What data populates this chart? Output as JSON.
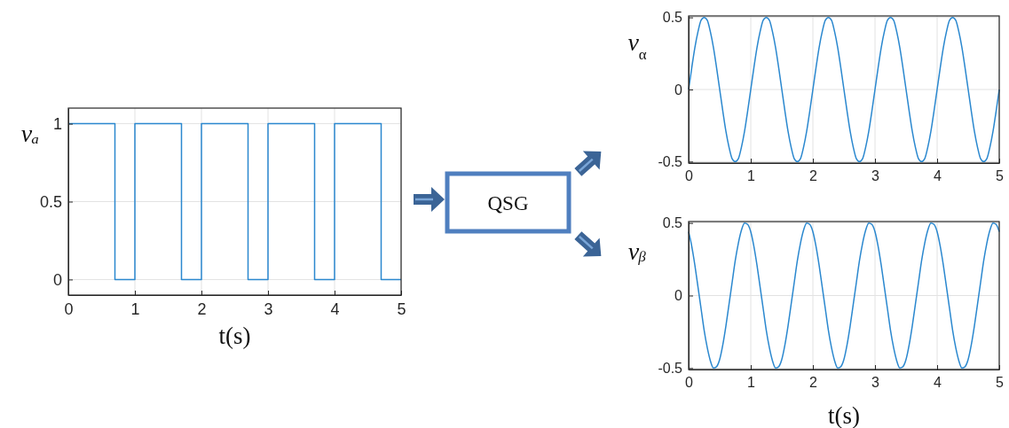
{
  "chart_data": [
    {
      "type": "step",
      "x": [
        0,
        0.7,
        1,
        1.7,
        2,
        2.7,
        3,
        3.7,
        4,
        4.7,
        5
      ],
      "values": [
        1,
        0,
        1,
        0,
        1,
        0,
        1,
        0,
        1,
        0,
        0
      ],
      "color": "#2b88cf",
      "xlim": [
        0,
        5
      ],
      "ylim": [
        -0.1,
        1.1
      ],
      "xticks": [
        0,
        1,
        2,
        3,
        4,
        5
      ],
      "yticks": [
        0,
        0.5,
        1
      ],
      "grid": true,
      "xlabel": "t(s)",
      "ylabel": "vₐ"
    },
    {
      "type": "other",
      "annotations": [
        "QSG"
      ]
    },
    {
      "type": "line",
      "x": [
        0,
        0.05,
        0.1,
        0.15,
        0.2,
        0.25,
        0.3,
        0.35,
        0.4,
        0.45,
        0.5,
        0.55,
        0.6,
        0.65,
        0.7,
        0.75,
        0.8,
        0.85,
        0.9,
        0.95,
        1,
        1.05,
        1.1,
        1.15,
        1.2,
        1.25,
        1.3,
        1.35,
        1.4,
        1.45,
        1.5,
        1.55,
        1.6,
        1.65,
        1.7,
        1.75,
        1.8,
        1.85,
        1.9,
        1.95,
        2,
        2.05,
        2.1,
        2.15,
        2.2,
        2.25,
        2.3,
        2.35,
        2.4,
        2.45,
        2.5,
        2.55,
        2.6,
        2.65,
        2.7,
        2.75,
        2.8,
        2.85,
        2.9,
        2.95,
        3,
        3.05,
        3.1,
        3.15,
        3.2,
        3.25,
        3.3,
        3.35,
        3.4,
        3.45,
        3.5,
        3.55,
        3.6,
        3.65,
        3.7,
        3.75,
        3.8,
        3.85,
        3.9,
        3.95,
        4,
        4.05,
        4.1,
        4.15,
        4.2,
        4.25,
        4.3,
        4.35,
        4.4,
        4.45,
        4.5,
        4.55,
        4.6,
        4.65,
        4.7,
        4.75,
        4.8,
        4.85,
        4.9,
        4.95,
        5
      ],
      "values": [
        0,
        0.15,
        0.29,
        0.4,
        0.48,
        0.5,
        0.48,
        0.4,
        0.29,
        0.15,
        0,
        -0.15,
        -0.29,
        -0.4,
        -0.48,
        -0.5,
        -0.48,
        -0.4,
        -0.29,
        -0.15,
        0,
        0.15,
        0.29,
        0.4,
        0.48,
        0.5,
        0.48,
        0.4,
        0.29,
        0.15,
        0,
        -0.15,
        -0.29,
        -0.4,
        -0.48,
        -0.5,
        -0.48,
        -0.4,
        -0.29,
        -0.15,
        0,
        0.15,
        0.29,
        0.4,
        0.48,
        0.5,
        0.48,
        0.4,
        0.29,
        0.15,
        0,
        -0.15,
        -0.29,
        -0.4,
        -0.48,
        -0.5,
        -0.48,
        -0.4,
        -0.29,
        -0.15,
        0,
        0.15,
        0.29,
        0.4,
        0.48,
        0.5,
        0.48,
        0.4,
        0.29,
        0.15,
        0,
        -0.15,
        -0.29,
        -0.4,
        -0.48,
        -0.5,
        -0.48,
        -0.4,
        -0.29,
        -0.15,
        0,
        0.15,
        0.29,
        0.4,
        0.48,
        0.5,
        0.48,
        0.4,
        0.29,
        0.15,
        0,
        -0.15,
        -0.29,
        -0.4,
        -0.48,
        -0.5,
        -0.48,
        -0.4,
        -0.29,
        -0.15,
        0
      ],
      "color": "#2b88cf",
      "xlim": [
        0,
        5
      ],
      "ylim": [
        -0.51,
        0.51
      ],
      "xticks": [
        0,
        1,
        2,
        3,
        4,
        5
      ],
      "yticks": [
        -0.5,
        0,
        0.5
      ],
      "grid": true,
      "ylabel": "v$_{α}$"
    },
    {
      "type": "line",
      "x": [
        0,
        0.05,
        0.1,
        0.15,
        0.2,
        0.25,
        0.3,
        0.35,
        0.4,
        0.45,
        0.5,
        0.55,
        0.6,
        0.65,
        0.7,
        0.75,
        0.8,
        0.85,
        0.9,
        0.95,
        1,
        1.05,
        1.1,
        1.15,
        1.2,
        1.25,
        1.3,
        1.35,
        1.4,
        1.45,
        1.5,
        1.55,
        1.6,
        1.65,
        1.7,
        1.75,
        1.8,
        1.85,
        1.9,
        1.95,
        2,
        2.05,
        2.1,
        2.15,
        2.2,
        2.25,
        2.3,
        2.35,
        2.4,
        2.45,
        2.5,
        2.55,
        2.6,
        2.65,
        2.7,
        2.75,
        2.8,
        2.85,
        2.9,
        2.95,
        3,
        3.05,
        3.1,
        3.15,
        3.2,
        3.25,
        3.3,
        3.35,
        3.4,
        3.45,
        3.5,
        3.55,
        3.6,
        3.65,
        3.7,
        3.75,
        3.8,
        3.85,
        3.9,
        3.95,
        4,
        4.05,
        4.1,
        4.15,
        4.2,
        4.25,
        4.3,
        4.35,
        4.4,
        4.45,
        4.5,
        4.55,
        4.6,
        4.65,
        4.7,
        4.75,
        4.8,
        4.85,
        4.9,
        4.95,
        5
      ],
      "values": [
        0.44,
        0.34,
        0.21,
        0.06,
        -0.09,
        -0.24,
        -0.36,
        -0.45,
        -0.5,
        -0.49,
        -0.44,
        -0.34,
        -0.21,
        -0.06,
        0.09,
        0.24,
        0.36,
        0.45,
        0.5,
        0.49,
        0.44,
        0.34,
        0.21,
        0.06,
        -0.09,
        -0.24,
        -0.36,
        -0.45,
        -0.5,
        -0.49,
        -0.44,
        -0.34,
        -0.21,
        -0.06,
        0.09,
        0.24,
        0.36,
        0.45,
        0.5,
        0.49,
        0.44,
        0.34,
        0.21,
        0.06,
        -0.09,
        -0.24,
        -0.36,
        -0.45,
        -0.5,
        -0.49,
        -0.44,
        -0.34,
        -0.21,
        -0.06,
        0.09,
        0.24,
        0.36,
        0.45,
        0.5,
        0.49,
        0.44,
        0.34,
        0.21,
        0.06,
        -0.09,
        -0.24,
        -0.36,
        -0.45,
        -0.5,
        -0.49,
        -0.44,
        -0.34,
        -0.21,
        -0.06,
        0.09,
        0.24,
        0.36,
        0.45,
        0.5,
        0.49,
        0.44,
        0.34,
        0.21,
        0.06,
        -0.09,
        -0.24,
        -0.36,
        -0.45,
        -0.5,
        -0.49,
        -0.44,
        -0.34,
        -0.21,
        -0.06,
        0.09,
        0.24,
        0.36,
        0.45,
        0.5,
        0.49,
        0.44
      ],
      "color": "#2b88cf",
      "xlim": [
        0,
        5
      ],
      "ylim": [
        -0.51,
        0.51
      ],
      "xticks": [
        0,
        1,
        2,
        3,
        4,
        5
      ],
      "yticks": [
        -0.5,
        0,
        0.5
      ],
      "grid": true,
      "xlabel": "t(s)",
      "ylabel": "vᵦ"
    }
  ]
}
